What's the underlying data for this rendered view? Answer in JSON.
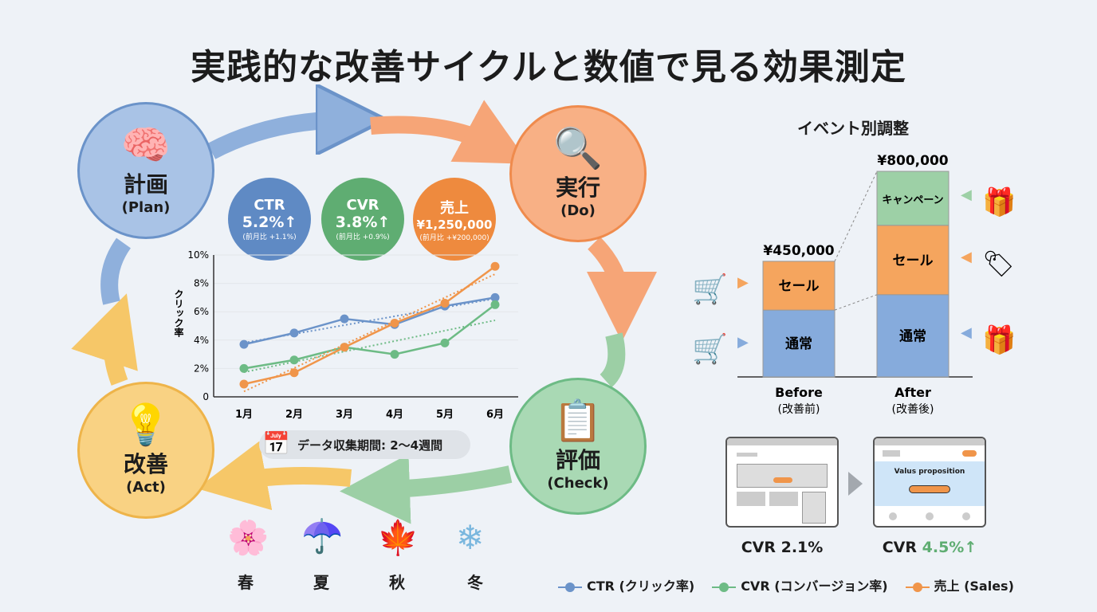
{
  "title": "実践的な改善サイクルと数値で見る効果測定",
  "colors": {
    "blue": "#6b93c9",
    "green": "#6dbb85",
    "orange": "#f0954a",
    "yellow": "#f6c768"
  },
  "cycle": [
    {
      "jp": "計画",
      "en": "(Plan)",
      "icon": "brain-gears-icon"
    },
    {
      "jp": "実行",
      "en": "(Do)",
      "icon": "browser-magnifier-icon"
    },
    {
      "jp": "評価",
      "en": "(Check)",
      "icon": "clipboard-check-icon"
    },
    {
      "jp": "改善",
      "en": "(Act)",
      "icon": "lightbulb-arrow-icon"
    }
  ],
  "kpis": [
    {
      "label": "CTR",
      "value": "5.2%",
      "arrow": "↑",
      "sub": "(前月比 +1.1%)"
    },
    {
      "label": "CVR",
      "value": "3.8%",
      "arrow": "↑",
      "sub": "(前月比 +0.9%)"
    },
    {
      "label": "売上",
      "value": "¥1,250,000",
      "arrow": "",
      "sub": "(前月比 +¥200,000)"
    }
  ],
  "chart_data": [
    {
      "type": "line",
      "ylabel": "クリック率",
      "categories": [
        "1月",
        "2月",
        "3月",
        "4月",
        "5月",
        "6月"
      ],
      "ylim": [
        0,
        10
      ],
      "yticks": [
        "0",
        "2%",
        "4%",
        "6%",
        "8%",
        "10%"
      ],
      "grid": true,
      "trendlines": "dotted",
      "series": [
        {
          "color": "#6b93c9",
          "values": [
            3.7,
            4.5,
            5.5,
            5.1,
            6.4,
            7.0
          ]
        },
        {
          "color": "#6dbb85",
          "values": [
            2.0,
            2.6,
            3.5,
            3.0,
            3.8,
            6.5
          ]
        },
        {
          "color": "#f0954a",
          "values": [
            0.9,
            1.7,
            3.5,
            5.2,
            6.6,
            9.2
          ]
        }
      ]
    },
    {
      "type": "bar",
      "stacked": true,
      "title": "イベント別調整",
      "categories": [
        "Before",
        "After"
      ],
      "category_sub": [
        "(改善前)",
        "(改善後)"
      ],
      "totals": [
        "¥450,000",
        "¥800,000"
      ],
      "total_values": [
        450000,
        800000
      ],
      "series": [
        {
          "name": "通常",
          "color": "#86abdc",
          "values": [
            260000,
            320000
          ]
        },
        {
          "name": "セール",
          "color": "#f5a55e",
          "values": [
            190000,
            270000
          ]
        },
        {
          "name": "キャンペーン",
          "color": "#9dd0a6",
          "values": [
            0,
            210000
          ]
        }
      ]
    }
  ],
  "data_period": "データ収集期間: 2〜4週間",
  "seasons": [
    "春",
    "夏",
    "秋",
    "冬"
  ],
  "lp": {
    "before": "CVR 2.1%",
    "after_prefix": "CVR ",
    "after_value": "4.5%",
    "after_arrow": "↑",
    "hero": "Valus proposition"
  },
  "legend": [
    "CTR (クリック率)",
    "CVR (コンバージョン率)",
    "売上 (Sales)"
  ]
}
